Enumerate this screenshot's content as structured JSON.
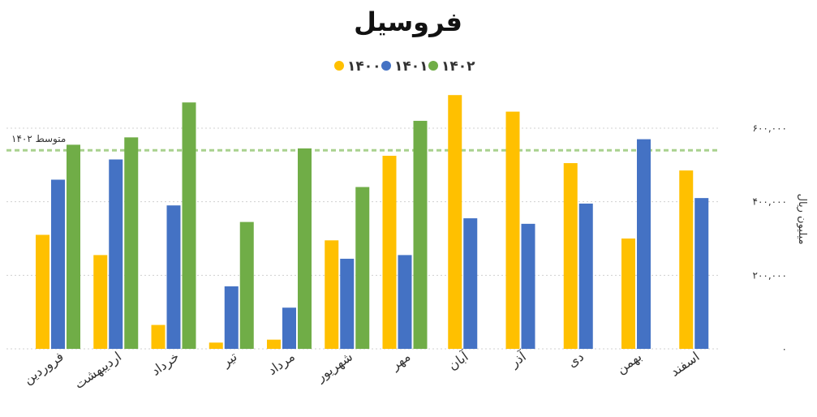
{
  "chart_data": {
    "type": "bar",
    "title": "فروسیل",
    "ylabel": "میلیون ریال",
    "ylim": [
      0,
      600000
    ],
    "yticks": [
      0,
      200000,
      400000,
      600000
    ],
    "ytick_labels": [
      "۰",
      "۲۰۰,۰۰۰",
      "۴۰۰,۰۰۰",
      "۶۰۰,۰۰۰"
    ],
    "categories": [
      "فروردین",
      "اردیبهشت",
      "خرداد",
      "تیر",
      "مرداد",
      "شهریور",
      "مهر",
      "آبان",
      "آذر",
      "دی",
      "بهمن",
      "اسفند"
    ],
    "series": [
      {
        "name": "۱۴۰۰",
        "color": "#FFC000",
        "values": [
          310000,
          255000,
          65000,
          17000,
          25000,
          295000,
          525000,
          690000,
          645000,
          505000,
          300000,
          485000
        ]
      },
      {
        "name": "۱۴۰۱",
        "color": "#4472C4",
        "values": [
          460000,
          515000,
          390000,
          170000,
          112000,
          245000,
          255000,
          355000,
          340000,
          395000,
          570000,
          410000
        ]
      },
      {
        "name": "۱۴۰۲",
        "color": "#70AD47",
        "values": [
          555000,
          575000,
          670000,
          345000,
          545000,
          440000,
          620000,
          null,
          null,
          null,
          null,
          null
        ]
      }
    ],
    "average_line": {
      "label": "متوسط ۱۴۰۲",
      "value": 540000,
      "color": "#A9D18E"
    },
    "legend_position": "top-center",
    "grid": true
  }
}
